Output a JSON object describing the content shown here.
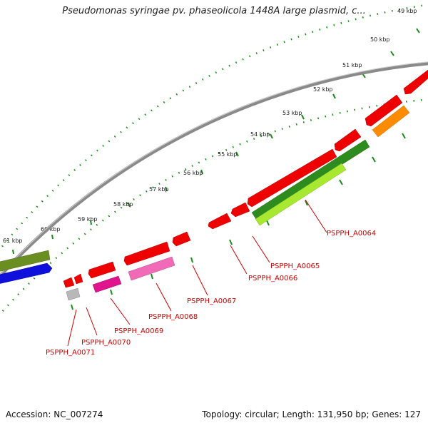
{
  "title": "Pseudomonas syringae pv. phaseolicola 1448A large plasmid, c...",
  "footer": {
    "accession": "Accession: NC_007274",
    "summary": "Topology: circular; Length: 131,950 bp; Genes: 127"
  },
  "scale_labels": [
    "61 kbp",
    "60 kbp",
    "59 kbp",
    "58 kbp",
    "57 kbp",
    "56 kbp",
    "55 kbp",
    "54 kbp",
    "53 kbp",
    "52 kbp",
    "51 kbp",
    "50 kbp",
    "49 kbp"
  ],
  "gene_labels": [
    "PSPPH_A0064",
    "PSPPH_A0065",
    "PSPPH_A0066",
    "PSPPH_A0067",
    "PSPPH_A0068",
    "PSPPH_A0069",
    "PSPPH_A0070",
    "PSPPH_A0071"
  ],
  "colors": {
    "red": "#ee0000",
    "magenta": "#e0148c",
    "pink": "#f06ab8",
    "green": "#2e8b1e",
    "lime": "#a8e830",
    "olive": "#6b8e23",
    "blue": "#1010dd",
    "orange": "#ff8c00",
    "gray": "#b8b8b8",
    "backbone": "#888888",
    "label": "#cc0000",
    "tick": "#1a8a1a"
  }
}
